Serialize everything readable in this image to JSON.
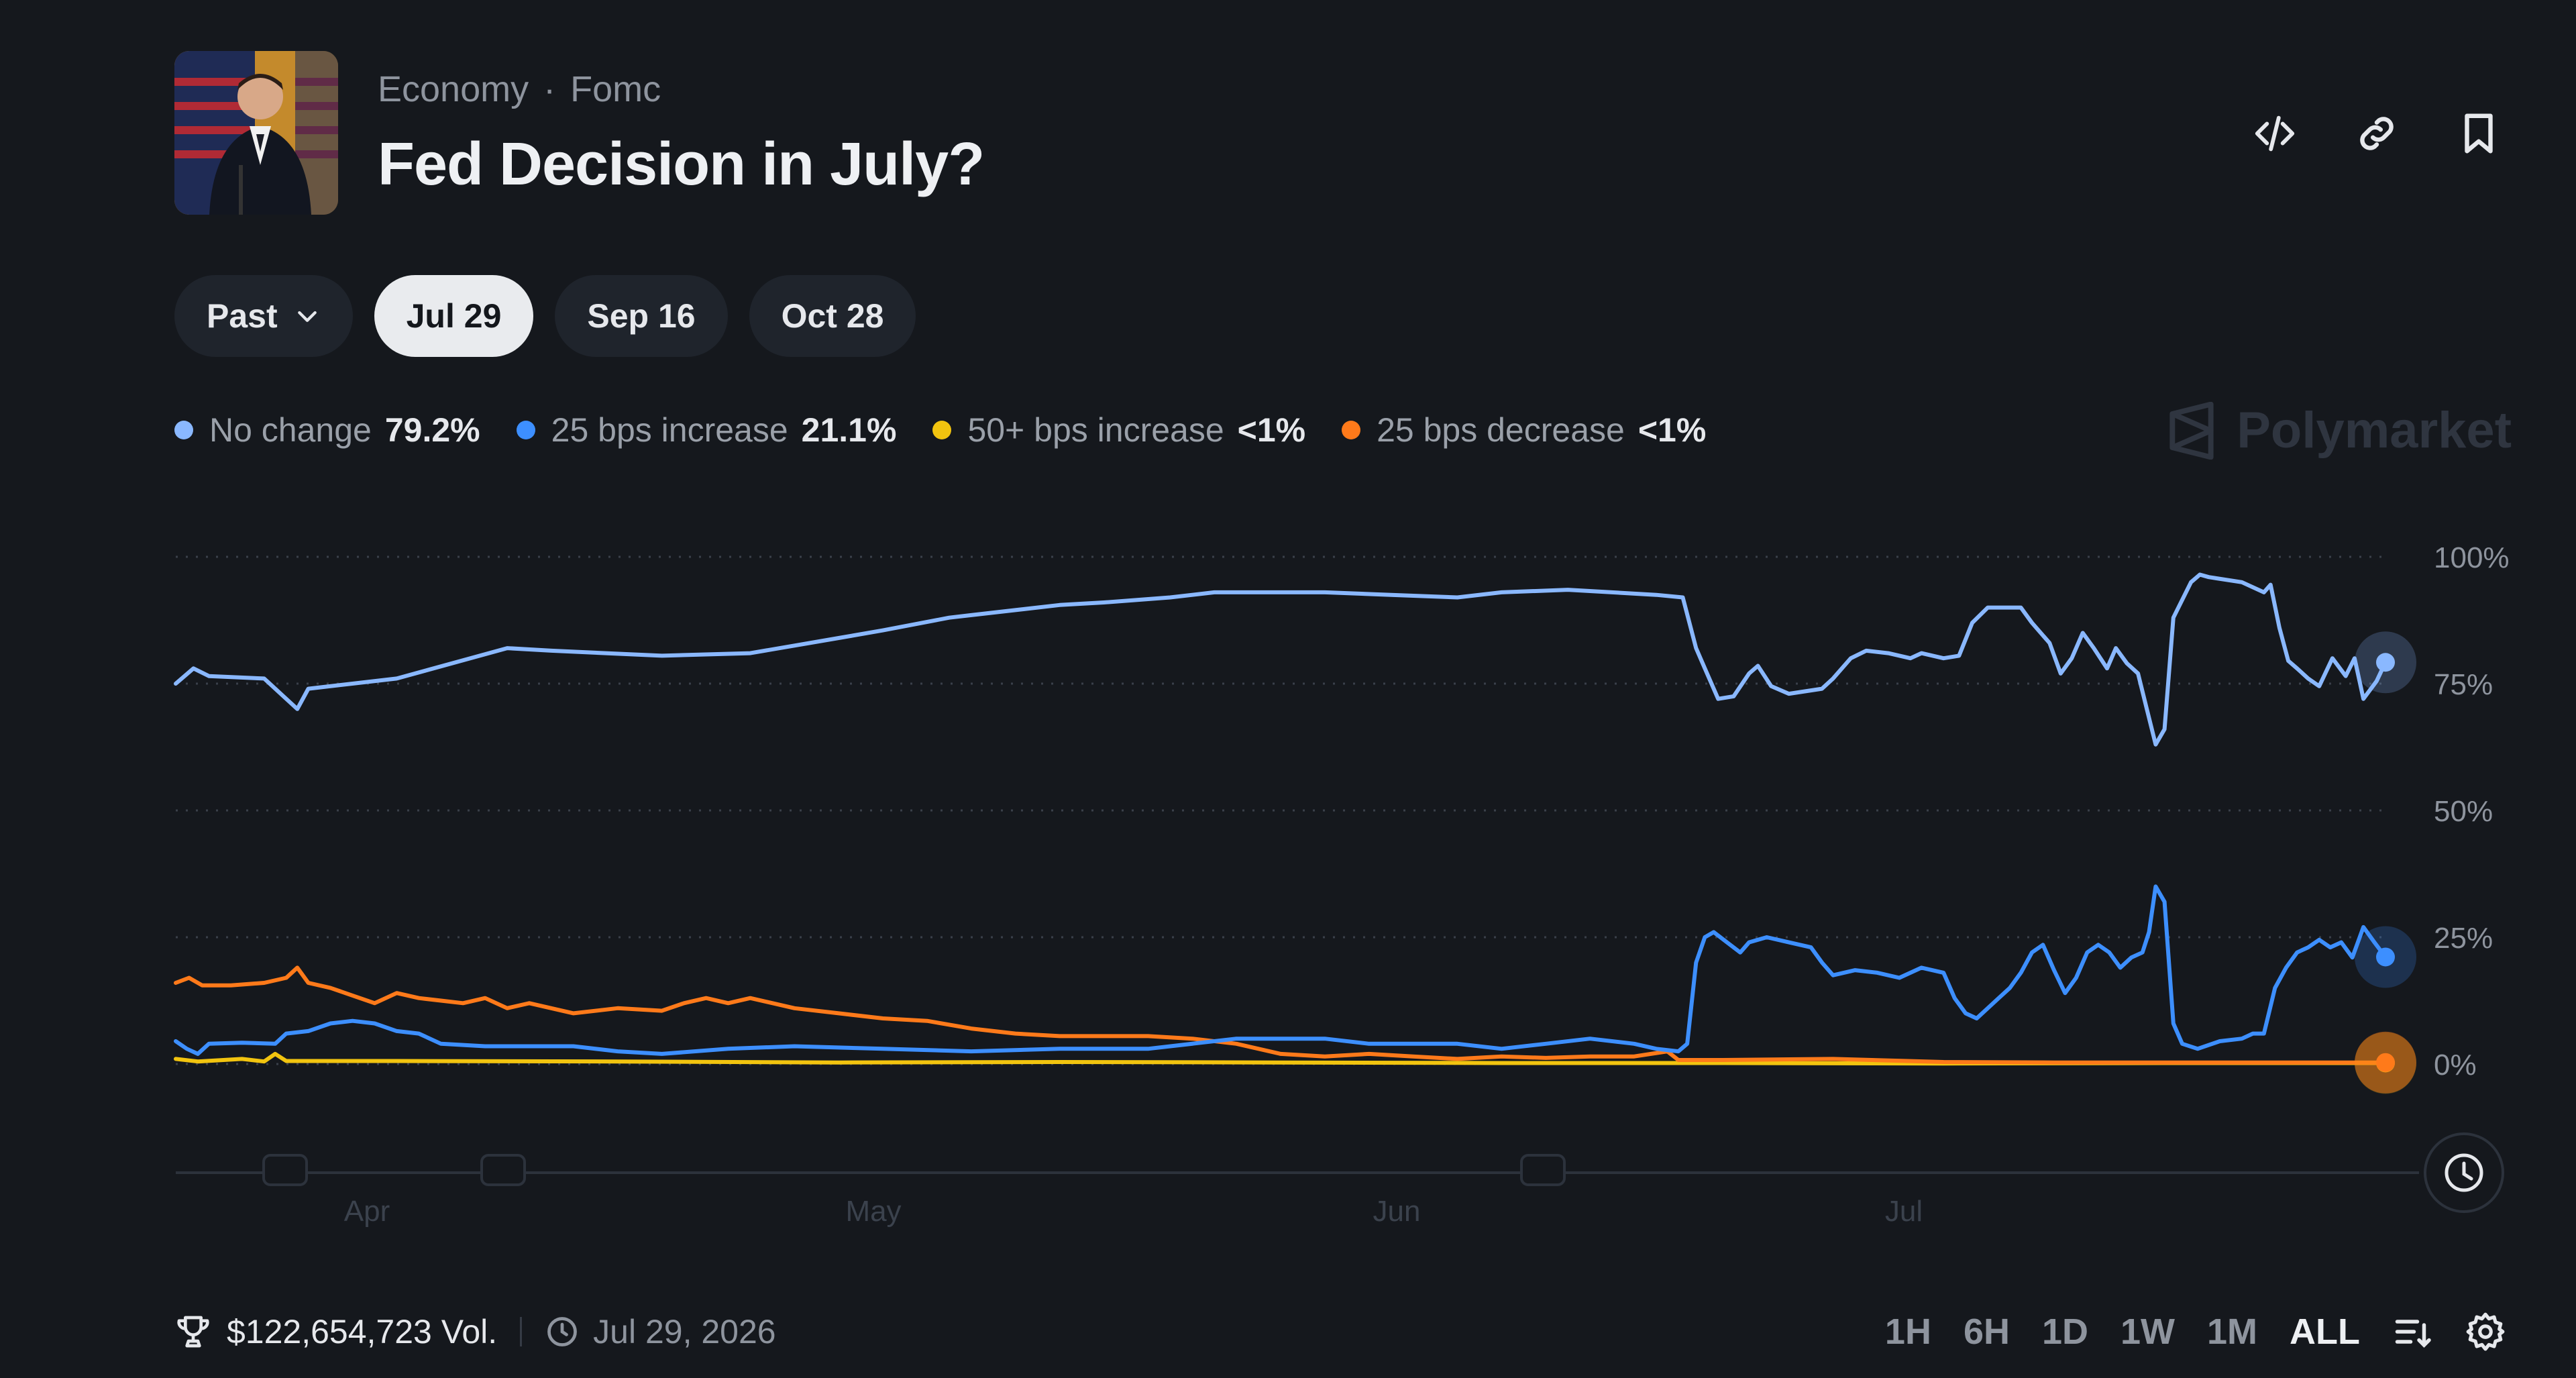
{
  "header": {
    "category": "Economy",
    "subcategory": "Fomc",
    "title": "Fed Decision in July?"
  },
  "tabs": [
    {
      "label": "Past",
      "active": false,
      "dropdown": true
    },
    {
      "label": "Jul 29",
      "active": true
    },
    {
      "label": "Sep 16",
      "active": false
    },
    {
      "label": "Oct 28",
      "active": false
    }
  ],
  "brand": "Polymarket",
  "footer": {
    "volume": "$122,654,723 Vol.",
    "date": "Jul 29, 2026",
    "ranges": [
      "1H",
      "6H",
      "1D",
      "1W",
      "1M",
      "ALL"
    ],
    "active_range": "ALL"
  },
  "chart_data": {
    "type": "line",
    "x_labels": [
      "Apr",
      "May",
      "Jun",
      "Jul"
    ],
    "y_ticks": [
      "100%",
      "75%",
      "50%",
      "25%",
      "0%"
    ],
    "ylim": [
      0,
      100
    ],
    "grid": true,
    "legend_position": "top-left",
    "series": [
      {
        "name": "No change",
        "value_label": "79.2%",
        "color": "#8ab8ff",
        "points": [
          [
            0,
            75
          ],
          [
            0.8,
            78
          ],
          [
            1.5,
            76.5
          ],
          [
            4,
            76
          ],
          [
            5,
            72
          ],
          [
            5.5,
            70
          ],
          [
            6,
            74
          ],
          [
            10,
            76
          ],
          [
            15,
            82
          ],
          [
            17,
            81.5
          ],
          [
            22,
            80.5
          ],
          [
            26,
            81
          ],
          [
            28,
            82.5
          ],
          [
            30,
            84
          ],
          [
            32,
            85.5
          ],
          [
            35,
            88
          ],
          [
            36,
            88.5
          ],
          [
            40,
            90.5
          ],
          [
            42,
            91
          ],
          [
            45,
            92
          ],
          [
            47,
            93
          ],
          [
            52,
            93
          ],
          [
            55,
            92.5
          ],
          [
            58,
            92
          ],
          [
            60,
            93
          ],
          [
            63,
            93.5
          ],
          [
            67,
            92.5
          ],
          [
            68.2,
            92
          ],
          [
            68.8,
            82
          ],
          [
            69.2,
            78
          ],
          [
            69.8,
            72
          ],
          [
            70.5,
            72.5
          ],
          [
            71.2,
            77
          ],
          [
            71.6,
            78.5
          ],
          [
            72.2,
            74.5
          ],
          [
            73,
            73
          ],
          [
            74.5,
            74
          ],
          [
            75,
            76
          ],
          [
            75.8,
            80
          ],
          [
            76.5,
            81.5
          ],
          [
            77.5,
            81
          ],
          [
            78.5,
            80
          ],
          [
            79,
            81
          ],
          [
            80,
            80
          ],
          [
            80.7,
            80.5
          ],
          [
            81.3,
            87
          ],
          [
            82,
            90
          ],
          [
            83.5,
            90
          ],
          [
            84,
            87
          ],
          [
            84.8,
            83
          ],
          [
            85.3,
            77
          ],
          [
            85.8,
            80
          ],
          [
            86.3,
            85
          ],
          [
            86.8,
            82
          ],
          [
            87.4,
            78
          ],
          [
            87.8,
            82
          ],
          [
            88.3,
            79
          ],
          [
            88.8,
            77
          ],
          [
            89.2,
            70
          ],
          [
            89.6,
            63
          ],
          [
            90,
            66
          ],
          [
            90.4,
            88
          ],
          [
            91.2,
            95
          ],
          [
            91.6,
            96.5
          ],
          [
            92,
            96
          ],
          [
            93.5,
            95
          ],
          [
            94.5,
            93
          ],
          [
            94.8,
            94.5
          ],
          [
            95.2,
            86
          ],
          [
            95.6,
            79.5
          ],
          [
            96,
            78
          ],
          [
            96.5,
            76
          ],
          [
            97,
            74.5
          ],
          [
            97.6,
            80
          ],
          [
            98.2,
            76.5
          ],
          [
            98.6,
            80
          ],
          [
            99,
            72
          ],
          [
            99.6,
            75.5
          ],
          [
            100,
            79.2
          ]
        ]
      },
      {
        "name": "25 bps increase",
        "value_label": "21.1%",
        "color": "#3d8fff",
        "points": [
          [
            0,
            4.5
          ],
          [
            0.5,
            3
          ],
          [
            1,
            2
          ],
          [
            1.5,
            4
          ],
          [
            3,
            4.2
          ],
          [
            4.5,
            4
          ],
          [
            5,
            6
          ],
          [
            6,
            6.5
          ],
          [
            7,
            8
          ],
          [
            8,
            8.5
          ],
          [
            9,
            8
          ],
          [
            10,
            6.5
          ],
          [
            11,
            6
          ],
          [
            12,
            4
          ],
          [
            14,
            3.5
          ],
          [
            18,
            3.5
          ],
          [
            20,
            2.5
          ],
          [
            22,
            2
          ],
          [
            25,
            3
          ],
          [
            28,
            3.5
          ],
          [
            32,
            3
          ],
          [
            36,
            2.5
          ],
          [
            40,
            3
          ],
          [
            44,
            3
          ],
          [
            48,
            5
          ],
          [
            52,
            5
          ],
          [
            54,
            4
          ],
          [
            58,
            4
          ],
          [
            60,
            3
          ],
          [
            62,
            4
          ],
          [
            64,
            5
          ],
          [
            66,
            4
          ],
          [
            67,
            3
          ],
          [
            68,
            2.5
          ],
          [
            68.4,
            4
          ],
          [
            68.8,
            20
          ],
          [
            69.2,
            25
          ],
          [
            69.6,
            26
          ],
          [
            70.2,
            24
          ],
          [
            70.8,
            22
          ],
          [
            71.2,
            24
          ],
          [
            72,
            25
          ],
          [
            73,
            24
          ],
          [
            74,
            23
          ],
          [
            74.5,
            20
          ],
          [
            75,
            17.5
          ],
          [
            76,
            18.5
          ],
          [
            77,
            18
          ],
          [
            78,
            17
          ],
          [
            79,
            19
          ],
          [
            80,
            18
          ],
          [
            80.5,
            13
          ],
          [
            81,
            10
          ],
          [
            81.5,
            9
          ],
          [
            82,
            11
          ],
          [
            82.5,
            13
          ],
          [
            83,
            15
          ],
          [
            83.5,
            18
          ],
          [
            84,
            22
          ],
          [
            84.5,
            23.5
          ],
          [
            85,
            18.5
          ],
          [
            85.5,
            14
          ],
          [
            86,
            17
          ],
          [
            86.5,
            22
          ],
          [
            87,
            23.5
          ],
          [
            87.5,
            22
          ],
          [
            88,
            19
          ],
          [
            88.5,
            21
          ],
          [
            89,
            22
          ],
          [
            89.3,
            26
          ],
          [
            89.6,
            35
          ],
          [
            90,
            32
          ],
          [
            90.4,
            8
          ],
          [
            90.8,
            4
          ],
          [
            91.5,
            3
          ],
          [
            92.5,
            4.5
          ],
          [
            93.5,
            5
          ],
          [
            94,
            6
          ],
          [
            94.5,
            6
          ],
          [
            95,
            15
          ],
          [
            95.5,
            19
          ],
          [
            96,
            22
          ],
          [
            96.5,
            23
          ],
          [
            97,
            24.5
          ],
          [
            97.5,
            23
          ],
          [
            98,
            24
          ],
          [
            98.5,
            21
          ],
          [
            99,
            27
          ],
          [
            99.5,
            24
          ],
          [
            100,
            21.1
          ]
        ]
      },
      {
        "name": "50+ bps increase",
        "value_label": "<1%",
        "color": "#f2c40f",
        "points": [
          [
            0,
            1
          ],
          [
            1,
            0.5
          ],
          [
            3,
            1
          ],
          [
            4,
            0.5
          ],
          [
            4.5,
            2
          ],
          [
            5,
            0.6
          ],
          [
            10,
            0.6
          ],
          [
            20,
            0.5
          ],
          [
            30,
            0.3
          ],
          [
            40,
            0.4
          ],
          [
            50,
            0.3
          ],
          [
            60,
            0.2
          ],
          [
            70,
            0.2
          ],
          [
            80,
            0.1
          ],
          [
            90,
            0.2
          ],
          [
            100,
            0.2
          ]
        ]
      },
      {
        "name": "25 bps decrease",
        "value_label": "<1%",
        "color": "#ff7a1a",
        "points": [
          [
            0,
            16
          ],
          [
            0.6,
            17
          ],
          [
            1.2,
            15.5
          ],
          [
            2.5,
            15.5
          ],
          [
            4,
            16
          ],
          [
            5,
            17
          ],
          [
            5.5,
            19
          ],
          [
            6,
            16
          ],
          [
            7,
            15
          ],
          [
            8,
            13.5
          ],
          [
            9,
            12
          ],
          [
            10,
            14
          ],
          [
            11,
            13
          ],
          [
            12,
            12.5
          ],
          [
            13,
            12
          ],
          [
            14,
            13
          ],
          [
            15,
            11
          ],
          [
            16,
            12
          ],
          [
            18,
            10
          ],
          [
            20,
            11
          ],
          [
            22,
            10.5
          ],
          [
            23,
            12
          ],
          [
            24,
            13
          ],
          [
            25,
            12
          ],
          [
            26,
            13
          ],
          [
            28,
            11
          ],
          [
            30,
            10
          ],
          [
            32,
            9
          ],
          [
            34,
            8.5
          ],
          [
            36,
            7
          ],
          [
            38,
            6
          ],
          [
            40,
            5.5
          ],
          [
            42,
            5.5
          ],
          [
            44,
            5.5
          ],
          [
            46,
            5
          ],
          [
            48,
            4
          ],
          [
            50,
            2
          ],
          [
            52,
            1.5
          ],
          [
            54,
            2
          ],
          [
            56,
            1.5
          ],
          [
            58,
            1
          ],
          [
            60,
            1.5
          ],
          [
            62,
            1.2
          ],
          [
            64,
            1.5
          ],
          [
            66,
            1.5
          ],
          [
            67.5,
            2.5
          ],
          [
            68,
            0.8
          ],
          [
            70,
            0.8
          ],
          [
            75,
            1
          ],
          [
            80,
            0.4
          ],
          [
            85,
            0.3
          ],
          [
            90,
            0.3
          ],
          [
            95,
            0.3
          ],
          [
            100,
            0.3
          ]
        ]
      }
    ]
  }
}
